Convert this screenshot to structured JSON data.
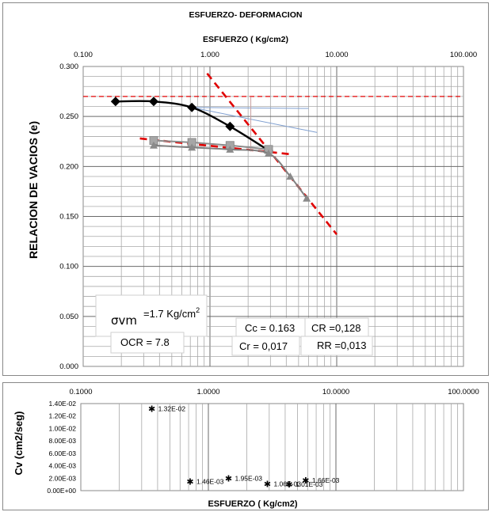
{
  "chart_data": [
    {
      "type": "scatter",
      "title": "ESFUERZO- DEFORMACION",
      "xlabel": "ESFUERZO ( Kg/cm2)",
      "ylabel": "RELACION DE VACIOS  (e)",
      "xscale": "log",
      "xlim": [
        0.1,
        100
      ],
      "ylim": [
        0,
        0.3
      ],
      "x_ticks": [
        "0.100",
        "1.000",
        "10.000",
        "100.000"
      ],
      "y_ticks": [
        "0.000",
        "0.050",
        "0.100",
        "0.150",
        "0.200",
        "0.250",
        "0.300"
      ],
      "grid": true,
      "series": [
        {
          "role": "loading",
          "color": "#000000",
          "marker": "diamond",
          "x": [
            0.18,
            0.36,
            0.72,
            1.44,
            2.9
          ],
          "y": [
            0.265,
            0.265,
            0.259,
            0.24,
            0.216
          ]
        },
        {
          "role": "reload",
          "color": "#8c8c8c",
          "marker": "square",
          "x": [
            0.36,
            0.72,
            1.44,
            2.9
          ],
          "y": [
            0.226,
            0.224,
            0.221,
            0.217
          ]
        },
        {
          "role": "unload",
          "color": "#7f7f7f",
          "marker": "triangle",
          "x": [
            0.36,
            0.72,
            1.44,
            2.9,
            4.3,
            5.8
          ],
          "y": [
            0.221,
            0.219,
            0.217,
            0.213,
            0.19,
            0.168
          ]
        }
      ],
      "construction_lines": [
        {
          "style": "dashed",
          "color": "#e00000",
          "x": [
            0.1,
            100
          ],
          "y": [
            0.27,
            0.27
          ]
        },
        {
          "style": "dashed",
          "color": "#e00000",
          "x": [
            0.95,
            10.0
          ],
          "y": [
            0.293,
            0.132
          ]
        },
        {
          "style": "dashed",
          "color": "#e00000",
          "x": [
            0.28,
            4.5
          ],
          "y": [
            0.228,
            0.212
          ]
        },
        {
          "style": "solid",
          "color": "#7f9fd0",
          "x": [
            0.72,
            7.0
          ],
          "y": [
            0.259,
            0.234
          ]
        },
        {
          "style": "solid",
          "color": "#7f9fd0",
          "x": [
            0.72,
            6.0
          ],
          "y": [
            0.259,
            0.258
          ]
        },
        {
          "style": "solid",
          "color": "#c8a0a0",
          "x": [
            2.1,
            2.1
          ],
          "y": [
            0.27,
            0.215
          ]
        }
      ],
      "annotations": [
        {
          "text": "σvm",
          "sup": ""
        },
        {
          "text": "=1.7 Kg/cm",
          "sup": "2"
        },
        {
          "text": "OCR = 7.8"
        },
        {
          "text": "Cc = 0.163"
        },
        {
          "text": "CR =0,128"
        },
        {
          "text": "Cr = 0,017"
        },
        {
          "text": "RR =0,013"
        }
      ]
    },
    {
      "type": "scatter",
      "xlabel": "ESFUERZO  ( Kg/cm2)",
      "ylabel": "Cv  (cm2/seg)",
      "xscale": "log",
      "xlim": [
        0.1,
        100
      ],
      "ylim": [
        0,
        0.014
      ],
      "x_ticks": [
        "0.1000",
        "1.0000",
        "10.0000",
        "100.0000"
      ],
      "y_ticks": [
        "0.00E+00",
        "2.00E-03",
        "4.00E-03",
        "6.00E-03",
        "8.00E-03",
        "1.00E-02",
        "1.20E-02",
        "1.40E-02"
      ],
      "grid": true,
      "points": [
        {
          "x": 0.36,
          "y": 0.0132,
          "label": "1.32E-02"
        },
        {
          "x": 0.72,
          "y": 0.00146,
          "label": "1.46E-03"
        },
        {
          "x": 1.44,
          "y": 0.00195,
          "label": "1.95E-03"
        },
        {
          "x": 2.9,
          "y": 0.00106,
          "label": "1.06E-03"
        },
        {
          "x": 4.3,
          "y": 0.00101,
          "label": "1.01E-03"
        },
        {
          "x": 5.8,
          "y": 0.00166,
          "label": "1.66E-03"
        }
      ]
    }
  ]
}
